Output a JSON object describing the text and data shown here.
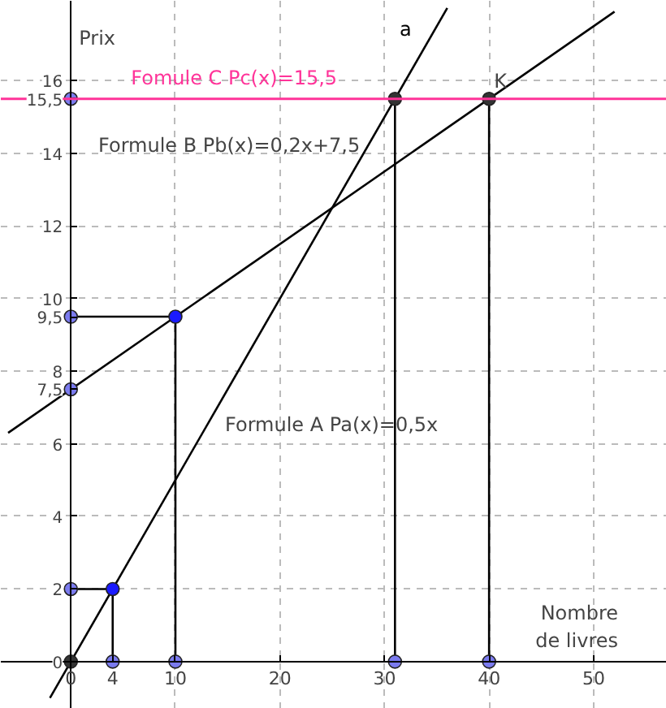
{
  "chart_data": {
    "type": "line",
    "xlabel": "Nombre de livres",
    "ylabel": "Prix",
    "xlim": [
      -6.7,
      57
    ],
    "ylim": [
      -1.3,
      18.2
    ],
    "xticks": [
      0,
      4,
      10,
      20,
      30,
      40,
      50
    ],
    "yticks": [
      0,
      2,
      4,
      6,
      {
        "value": 7.5,
        "label": "7,5"
      },
      8,
      {
        "value": 9.5,
        "label": "9,5"
      },
      10,
      12,
      14,
      {
        "value": 15.5,
        "label": "15,5"
      },
      16
    ],
    "grid": true,
    "line_style": "solid",
    "marker": "none",
    "series": [
      {
        "name": "a",
        "color": "#000000",
        "x": [
          -2,
          36
        ],
        "values": [
          -1,
          18
        ]
      },
      {
        "color": "#000000",
        "x": [
          -6,
          52
        ],
        "values": [
          6.3,
          17.9
        ]
      },
      {
        "color": "#000000",
        "x": [
          10,
          10,
          0,
          null,
          4,
          4,
          0,
          null,
          31,
          31,
          null,
          40,
          40
        ],
        "values": [
          0,
          9.5,
          9.5,
          null,
          0,
          2,
          2,
          null,
          0,
          15.5,
          null,
          0,
          15.5
        ]
      },
      {
        "type": "scatter",
        "marker": "circle",
        "color": "#7b7bef",
        "x": [
          0,
          4,
          10,
          0,
          0,
          0,
          31,
          40
        ],
        "values": [
          2,
          0,
          0,
          7.5,
          9.5,
          15.5,
          0,
          0
        ]
      },
      {
        "type": "scatter",
        "marker": "circle",
        "color": "#1a1aff",
        "x": [
          4,
          10
        ],
        "values": [
          2,
          9.5
        ]
      },
      {
        "type": "scatter",
        "marker": "circle",
        "color": "#333333",
        "x": [
          0,
          31,
          40
        ],
        "values": [
          0,
          15.5,
          15.5
        ]
      }
    ],
    "ref_lines": [
      {
        "axis": "y",
        "value": 15.5,
        "label": "Fomule C Pc(x)=15,5",
        "color": "#ff3399"
      }
    ],
    "annotations": [
      {
        "text": "K",
        "x": 40,
        "y": 15.5
      },
      "Formule B Pb(x)=0,2x+7,5",
      "Formule A Pa(x)=0,5x"
    ]
  }
}
